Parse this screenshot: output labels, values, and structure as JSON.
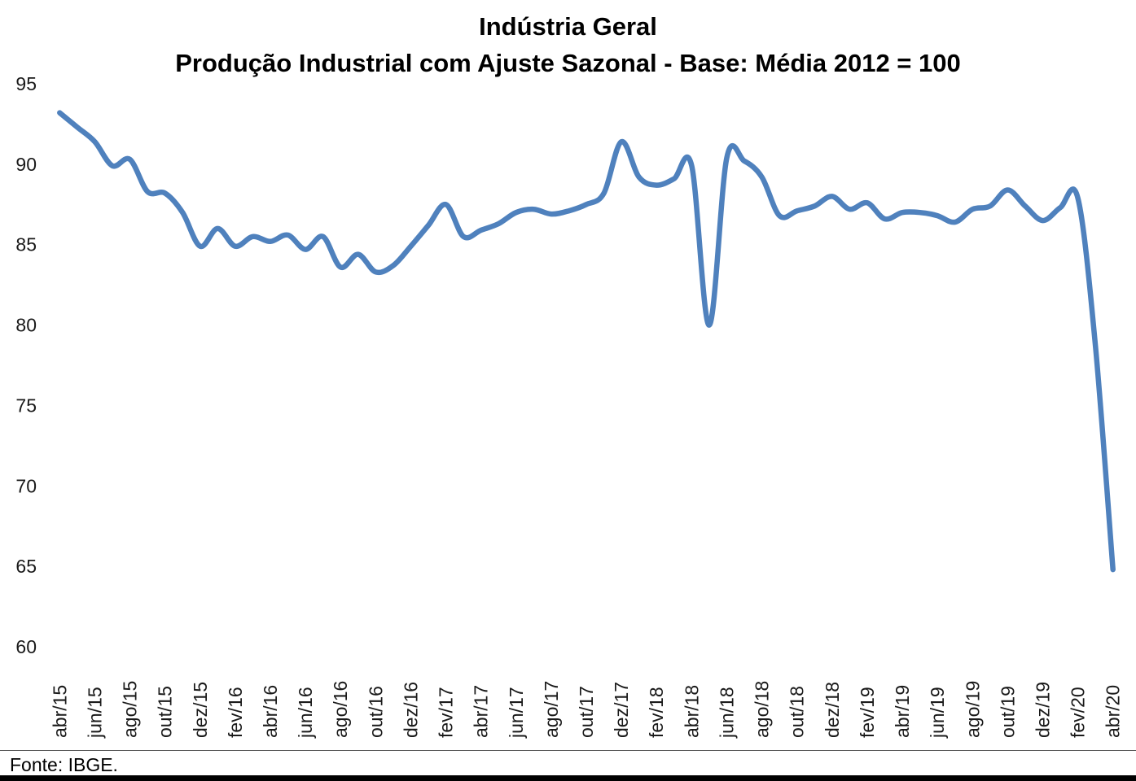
{
  "title": {
    "line1": "Indústria Geral",
    "line2": "Produção Industrial com Ajuste Sazonal - Base: Média 2012 = 100"
  },
  "source_note": "Fonte: IBGE.",
  "colors": {
    "line": "#4F81BD",
    "axis_text": "#1a1a1a",
    "divider": "#595959",
    "bottom_bar": "#000000"
  },
  "chart_data": {
    "type": "line",
    "title": "Indústria Geral — Produção Industrial com Ajuste Sazonal - Base: Média 2012 = 100",
    "xlabel": "",
    "ylabel": "",
    "ylim": [
      60,
      95
    ],
    "yticks": [
      95,
      90,
      85,
      80,
      75,
      70,
      65,
      60
    ],
    "grid": false,
    "legend": "none",
    "smoothed": true,
    "xtick_every": 2,
    "x": [
      "abr/15",
      "mai/15",
      "jun/15",
      "jul/15",
      "ago/15",
      "set/15",
      "out/15",
      "nov/15",
      "dez/15",
      "jan/16",
      "fev/16",
      "mar/16",
      "abr/16",
      "mai/16",
      "jun/16",
      "jul/16",
      "ago/16",
      "set/16",
      "out/16",
      "nov/16",
      "dez/16",
      "jan/17",
      "fev/17",
      "mar/17",
      "abr/17",
      "mai/17",
      "jun/17",
      "jul/17",
      "ago/17",
      "set/17",
      "out/17",
      "nov/17",
      "dez/17",
      "jan/18",
      "fev/18",
      "mar/18",
      "abr/18",
      "mai/18",
      "jun/18",
      "jul/18",
      "ago/18",
      "set/18",
      "out/18",
      "nov/18",
      "dez/18",
      "jan/19",
      "fev/19",
      "mar/19",
      "abr/19",
      "mai/19",
      "jun/19",
      "jul/19",
      "ago/19",
      "set/19",
      "out/19",
      "nov/19",
      "dez/19",
      "jan/20",
      "fev/20",
      "mar/20",
      "abr/20"
    ],
    "series": [
      {
        "name": "Produção Industrial com Ajuste Sazonal (Base: Média 2012 = 100)",
        "values": [
          93.2,
          92.3,
          91.4,
          89.9,
          90.3,
          88.3,
          88.2,
          87.0,
          84.9,
          86.0,
          84.9,
          85.5,
          85.2,
          85.6,
          84.7,
          85.5,
          83.6,
          84.4,
          83.3,
          83.7,
          84.9,
          86.2,
          87.5,
          85.5,
          85.9,
          86.3,
          87.0,
          87.2,
          86.9,
          87.1,
          87.5,
          88.2,
          91.4,
          89.2,
          88.7,
          89.1,
          89.9,
          80.0,
          90.4,
          90.2,
          89.2,
          86.8,
          87.1,
          87.4,
          88.0,
          87.2,
          87.6,
          86.6,
          87.0,
          87.0,
          86.8,
          86.4,
          87.2,
          87.4,
          88.4,
          87.4,
          86.5,
          87.3,
          87.9,
          78.7,
          64.8
        ]
      }
    ]
  }
}
